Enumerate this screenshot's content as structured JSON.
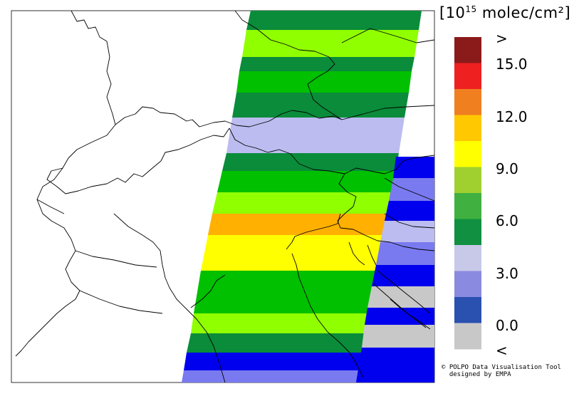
{
  "colorbar": {
    "unit_prefix": "[10",
    "unit_exponent": "15",
    "unit_suffix": " molec/cm²]",
    "over_label": ">",
    "under_label": "<",
    "tick_labels": [
      "15.0",
      "12.0",
      "9.0",
      "6.0",
      "3.0",
      "0.0"
    ],
    "colors_top_to_bottom": [
      "#8b1a1a",
      "#ee2020",
      "#f07f20",
      "#ffc800",
      "#ffff00",
      "#a0d030",
      "#40b040",
      "#109040",
      "#c8c8e8",
      "#8a8ae0",
      "#2a50b0",
      "#c8c8c8"
    ]
  },
  "credit": {
    "line1": "© POLPO Data Visualisation Tool",
    "line2": "  designed by EMPA"
  },
  "map": {
    "region": "Northern Italy / Alps",
    "band_colors": {
      "dark_green": "#0a8c3a",
      "green": "#00c000",
      "yellow_green": "#90ff00",
      "light_purple": "#bcbcf0",
      "orange": "#ffb000",
      "yellow": "#ffff00",
      "blue": "#0000ee",
      "medium_blue": "#7a7af0",
      "gray": "#c8c8c8"
    }
  }
}
